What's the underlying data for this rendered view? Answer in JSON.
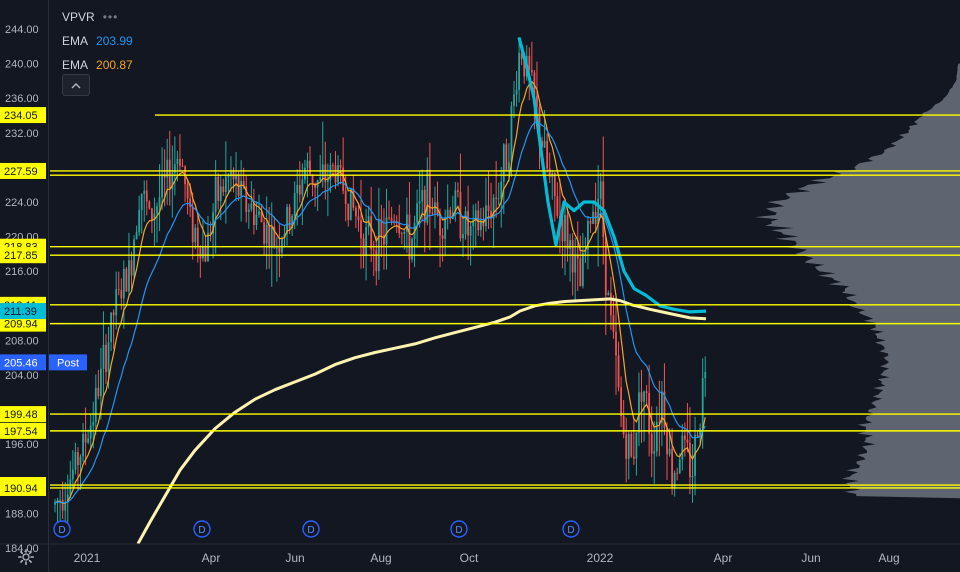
{
  "legend": {
    "indicator": "VPVR",
    "dots": "•••",
    "ema1_label": "EMA",
    "ema1_value": "203.99",
    "ema2_label": "EMA",
    "ema2_value": "200.87"
  },
  "colors": {
    "bg": "#131722",
    "up": "#26a69a",
    "down": "#ef5350",
    "ema_fast": "#f5a623",
    "ema_slow": "#2196f3",
    "ema_cyan": "#00bcd4",
    "sma_long": "#fff3b0",
    "level": "#ffff00",
    "profile": "#6d727f",
    "event": "#2962ff",
    "text": "#d1d4dc",
    "axis_text": "#b2b5be"
  },
  "chart_data": {
    "type": "candlestick",
    "y_axis": {
      "ticks": [
        184,
        188,
        192,
        196,
        200,
        204,
        208,
        212,
        216,
        220,
        224,
        228,
        232,
        236,
        240,
        244
      ],
      "tick_labels": [
        "184.00",
        "188.00",
        "",
        "196.00",
        "",
        "204.00",
        "208.00",
        "",
        "216.00",
        "220.00",
        "224.00",
        "",
        "232.00",
        "236.00",
        "240.00",
        "244.00"
      ],
      "range": [
        184,
        246
      ]
    },
    "x_axis": {
      "ticks": [
        "2021",
        "Apr",
        "Jun",
        "Aug",
        "Oct",
        "2022",
        "Apr",
        "Jun",
        "Aug"
      ]
    },
    "level_lines": [
      {
        "value": 234.05,
        "label": "234.05",
        "full": false
      },
      {
        "value": 227.59,
        "label": "227.59",
        "full": true
      },
      {
        "value": 227.1,
        "label": "",
        "full": true
      },
      {
        "value": 218.83,
        "label": "218.83",
        "full": true
      },
      {
        "value": 217.85,
        "label": "217.85",
        "full": true
      },
      {
        "value": 212.11,
        "label": "212.11",
        "full": true
      },
      {
        "value": 209.94,
        "label": "209.94",
        "full": true
      },
      {
        "value": 199.48,
        "label": "199.48",
        "full": true
      },
      {
        "value": 197.54,
        "label": "197.54",
        "full": true
      },
      {
        "value": 191.28,
        "label": "191.28",
        "full": true
      },
      {
        "value": 190.94,
        "label": "190.94",
        "full": true
      }
    ],
    "price_tags": [
      {
        "value": 211.39,
        "label": "211.39",
        "color": "#00bcd4"
      },
      {
        "value": 205.46,
        "label": "205.46",
        "post": "Post",
        "color": "#2962ff"
      }
    ],
    "series": [
      {
        "name": "EMA",
        "value": 203.99,
        "color": "#2196f3"
      },
      {
        "name": "EMA",
        "value": 200.87,
        "color": "#f5a623"
      }
    ],
    "events": [
      "D",
      "D",
      "D",
      "D",
      "D"
    ],
    "legend_placement": "top-left",
    "grid": false
  }
}
